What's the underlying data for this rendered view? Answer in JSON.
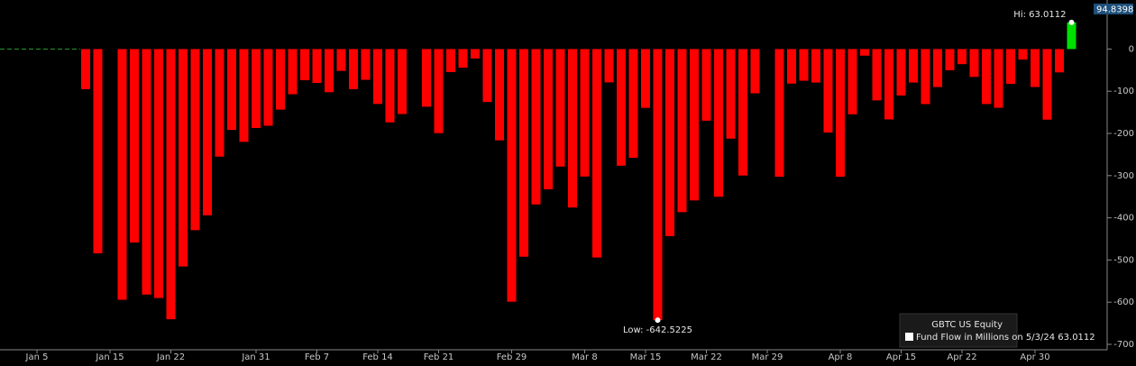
{
  "chart_data": {
    "type": "bar",
    "series": [
      {
        "name": "GBTC US Equity",
        "color": "#ff0000",
        "positive_color": "#00e000",
        "values": [
          null,
          null,
          null,
          null,
          -95.1,
          -484.1,
          null,
          -594.3,
          -458.6,
          -582,
          -590.1,
          -640.5,
          -515.3,
          -429.3,
          -394.1,
          -255,
          -191.7,
          -220,
          -187.2,
          -181.8,
          -143.6,
          -107.1,
          -73.9,
          -80.3,
          -102.3,
          -51.8,
          -95.1,
          -72.9,
          -130.1,
          -173.8,
          -154,
          null,
          -136.7,
          -199.3,
          -54.6,
          -44.2,
          -22.4,
          -125.6,
          -216.4,
          -598.9,
          -492.2,
          -368.3,
          -332.5,
          -278.6,
          -375.6,
          -302.1,
          -494.1,
          -79,
          -276.5,
          -257.7,
          -139.4,
          -642.5225,
          -443.5,
          -386.6,
          -358.8,
          -169.9,
          -350.1,
          -212.3,
          -299.8,
          -104.9,
          null,
          -302.6,
          -81.9,
          -75.1,
          -79.4,
          -198,
          -302.5,
          -154.7,
          -15.7,
          -121.7,
          -166.8,
          -110.1,
          -79.4,
          -130.5,
          -90.1,
          -50.2,
          -35.8,
          -66,
          -130.4,
          -139.2,
          -82.4,
          -25,
          -90,
          -167.4,
          -55.3,
          63.0112
        ]
      }
    ],
    "categories": [
      "Jan 5",
      null,
      null,
      null,
      null,
      null,
      "Jan 15",
      null,
      null,
      null,
      null,
      "Jan 22",
      null,
      null,
      null,
      null,
      null,
      null,
      "Jan 31",
      null,
      null,
      null,
      null,
      "Feb 7",
      null,
      null,
      null,
      null,
      "Feb 14",
      null,
      null,
      null,
      null,
      "Feb 21",
      null,
      null,
      null,
      null,
      null,
      "Feb 29",
      null,
      null,
      null,
      null,
      null,
      "Mar 8",
      null,
      null,
      null,
      null,
      "Mar 15",
      null,
      null,
      null,
      null,
      "Mar 22",
      null,
      null,
      null,
      null,
      "Mar 29",
      null,
      null,
      null,
      null,
      null,
      "Apr 8",
      null,
      null,
      null,
      null,
      "Apr 15",
      null,
      null,
      null,
      null,
      "Apr 22",
      null,
      null,
      null,
      null,
      null,
      "Apr 30",
      null,
      null,
      null
    ],
    "ylim": [
      -700,
      112
    ],
    "yticks": [
      0,
      -100,
      -200,
      -300,
      -400,
      -500,
      -600,
      -700
    ],
    "axis_top_label": "94.8398",
    "high_label": "Hi: 63.0112",
    "low_label": "Low: -642.5225",
    "legend_title": "GBTC US Equity",
    "legend_entry": "Fund Flow in Millions on 5/3/24 63.0112"
  }
}
